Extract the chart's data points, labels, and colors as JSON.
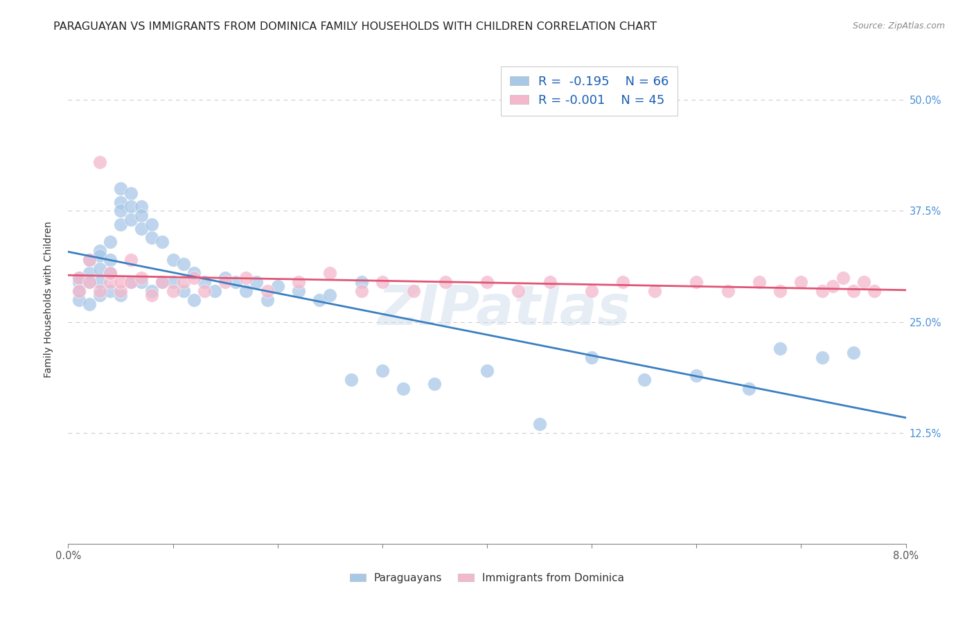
{
  "title": "PARAGUAYAN VS IMMIGRANTS FROM DOMINICA FAMILY HOUSEHOLDS WITH CHILDREN CORRELATION CHART",
  "source": "Source: ZipAtlas.com",
  "ylabel": "Family Households with Children",
  "ytick_labels": [
    "",
    "12.5%",
    "25.0%",
    "37.5%",
    "50.0%"
  ],
  "ytick_values": [
    0.0,
    0.125,
    0.25,
    0.375,
    0.5
  ],
  "xlim": [
    0.0,
    0.08
  ],
  "ylim": [
    0.0,
    0.55
  ],
  "blue_color": "#a8c8e8",
  "pink_color": "#f4b8cc",
  "blue_line_color": "#3a7fc1",
  "pink_line_color": "#e05575",
  "legend_r1_val": "-0.195",
  "legend_n1_val": "66",
  "legend_r2_val": "-0.001",
  "legend_n2_val": "45",
  "watermark": "ZIPatlas",
  "paraguayan_x": [
    0.001,
    0.001,
    0.001,
    0.001,
    0.002,
    0.002,
    0.002,
    0.002,
    0.003,
    0.003,
    0.003,
    0.003,
    0.003,
    0.004,
    0.004,
    0.004,
    0.004,
    0.005,
    0.005,
    0.005,
    0.005,
    0.005,
    0.006,
    0.006,
    0.006,
    0.006,
    0.007,
    0.007,
    0.007,
    0.007,
    0.008,
    0.008,
    0.008,
    0.009,
    0.009,
    0.01,
    0.01,
    0.011,
    0.011,
    0.012,
    0.012,
    0.013,
    0.014,
    0.015,
    0.016,
    0.017,
    0.018,
    0.019,
    0.02,
    0.022,
    0.024,
    0.025,
    0.027,
    0.028,
    0.03,
    0.032,
    0.035,
    0.04,
    0.045,
    0.05,
    0.055,
    0.06,
    0.065,
    0.068,
    0.072,
    0.075
  ],
  "paraguayan_y": [
    0.3,
    0.295,
    0.285,
    0.275,
    0.32,
    0.305,
    0.295,
    0.27,
    0.33,
    0.325,
    0.31,
    0.295,
    0.28,
    0.34,
    0.32,
    0.305,
    0.285,
    0.4,
    0.385,
    0.375,
    0.36,
    0.28,
    0.395,
    0.38,
    0.365,
    0.295,
    0.38,
    0.37,
    0.355,
    0.295,
    0.36,
    0.345,
    0.285,
    0.34,
    0.295,
    0.32,
    0.295,
    0.315,
    0.285,
    0.305,
    0.275,
    0.295,
    0.285,
    0.3,
    0.295,
    0.285,
    0.295,
    0.275,
    0.29,
    0.285,
    0.275,
    0.28,
    0.185,
    0.295,
    0.195,
    0.175,
    0.18,
    0.195,
    0.135,
    0.21,
    0.185,
    0.19,
    0.175,
    0.22,
    0.21,
    0.215
  ],
  "dominica_x": [
    0.001,
    0.001,
    0.002,
    0.002,
    0.003,
    0.003,
    0.004,
    0.004,
    0.005,
    0.005,
    0.006,
    0.006,
    0.007,
    0.008,
    0.009,
    0.01,
    0.011,
    0.012,
    0.013,
    0.015,
    0.017,
    0.019,
    0.022,
    0.025,
    0.028,
    0.03,
    0.033,
    0.036,
    0.04,
    0.043,
    0.046,
    0.05,
    0.053,
    0.056,
    0.06,
    0.063,
    0.066,
    0.068,
    0.07,
    0.072,
    0.073,
    0.074,
    0.075,
    0.076,
    0.077
  ],
  "dominica_y": [
    0.3,
    0.285,
    0.32,
    0.295,
    0.285,
    0.43,
    0.295,
    0.305,
    0.285,
    0.295,
    0.32,
    0.295,
    0.3,
    0.28,
    0.295,
    0.285,
    0.295,
    0.3,
    0.285,
    0.295,
    0.3,
    0.285,
    0.295,
    0.305,
    0.285,
    0.295,
    0.285,
    0.295,
    0.295,
    0.285,
    0.295,
    0.285,
    0.295,
    0.285,
    0.295,
    0.285,
    0.295,
    0.285,
    0.295,
    0.285,
    0.29,
    0.3,
    0.285,
    0.295,
    0.285
  ],
  "grid_color": "#cccccc",
  "title_fontsize": 11.5,
  "axis_label_fontsize": 10,
  "tick_fontsize": 10.5,
  "right_tick_color": "#4a90d9"
}
